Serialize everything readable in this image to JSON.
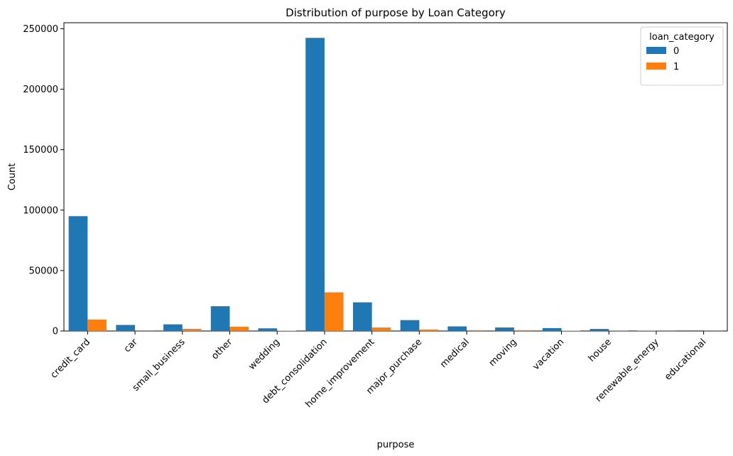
{
  "chart_data": {
    "type": "bar",
    "title": "Distribution of purpose by Loan Category",
    "xlabel": "purpose",
    "ylabel": "Count",
    "ylim": [
      0,
      255000
    ],
    "yticks": [
      0,
      50000,
      100000,
      150000,
      200000,
      250000
    ],
    "ytick_labels": [
      "0",
      "50000",
      "100000",
      "150000",
      "200000",
      "250000"
    ],
    "grid": false,
    "legend_placement": "top-right",
    "legend_title": "loan_category",
    "categories": [
      "credit_card",
      "car",
      "small_business",
      "other",
      "wedding",
      "debt_consolidation",
      "home_improvement",
      "major_purchase",
      "medical",
      "moving",
      "vacation",
      "house",
      "renewable_energy",
      "educational"
    ],
    "series": [
      {
        "name": "0",
        "color": "#1f77b4",
        "values": [
          95000,
          5000,
          5500,
          20500,
          2200,
          242500,
          23700,
          9000,
          3800,
          2900,
          2400,
          1700,
          300,
          500
        ]
      },
      {
        "name": "1",
        "color": "#ff7f0e",
        "values": [
          9500,
          600,
          1800,
          3500,
          300,
          32000,
          2900,
          1200,
          700,
          700,
          300,
          500,
          100,
          100
        ]
      }
    ]
  }
}
